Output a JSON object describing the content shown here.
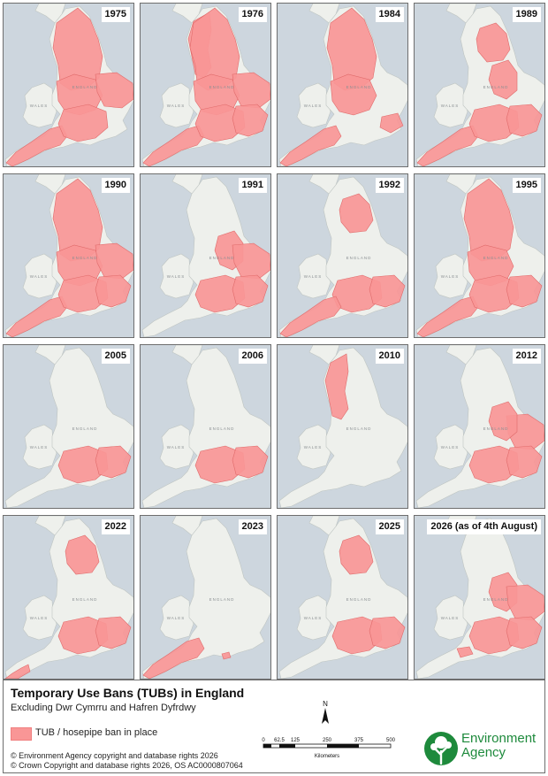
{
  "panels": [
    {
      "year": "1975",
      "regions": [
        "north",
        "midlands",
        "anglia",
        "southwest",
        "south"
      ]
    },
    {
      "year": "1976",
      "regions": [
        "northwest",
        "north",
        "midlands",
        "anglia",
        "southwest",
        "south",
        "southeast"
      ]
    },
    {
      "year": "1984",
      "regions": [
        "north",
        "midlands",
        "southwest",
        "kent"
      ]
    },
    {
      "year": "1989",
      "regions": [
        "yorkshire",
        "eastmid",
        "southwest",
        "south",
        "southeast"
      ]
    },
    {
      "year": "1990",
      "regions": [
        "north",
        "midlands",
        "anglia",
        "southwest",
        "south",
        "southeast"
      ]
    },
    {
      "year": "1991",
      "regions": [
        "eastmid",
        "anglia",
        "south",
        "southeast"
      ]
    },
    {
      "year": "1992",
      "regions": [
        "yorkshire",
        "south",
        "southeast",
        "southwest"
      ]
    },
    {
      "year": "1995",
      "regions": [
        "north",
        "midlands",
        "southwest",
        "south",
        "southeast"
      ]
    },
    {
      "year": "2005",
      "regions": [
        "south",
        "southeast"
      ]
    },
    {
      "year": "2006",
      "regions": [
        "south",
        "southeast"
      ]
    },
    {
      "year": "2010",
      "regions": [
        "northwest"
      ]
    },
    {
      "year": "2012",
      "regions": [
        "anglia",
        "eastmid",
        "south",
        "southeast"
      ]
    },
    {
      "year": "2022",
      "regions": [
        "yorkshire",
        "south",
        "southeast",
        "cornwall"
      ]
    },
    {
      "year": "2023",
      "regions": [
        "southwest",
        "isleofwight"
      ]
    },
    {
      "year": "2025",
      "regions": [
        "yorkshire",
        "south",
        "southeast"
      ]
    },
    {
      "year": "2026 (as of 4th August)",
      "regions": [
        "eastmid",
        "anglia",
        "south",
        "southeast",
        "dorset"
      ]
    }
  ],
  "map_labels": {
    "wales": "WALES",
    "england": "ENGLAND"
  },
  "legend": {
    "title": "Temporary Use Bans (TUBs) in England",
    "subtitle": "Excluding Dwr Cymrru and Hafren Dyfrdwy",
    "item_label": "TUB / hosepipe ban in place",
    "swatch_color": "#f99696"
  },
  "copyright": [
    "© Environment Agency copyright and database rights 2026",
    "© Crown Copyright and database rights 2026, OS AC0000807064"
  ],
  "north_label": "N",
  "scale": {
    "ticks": [
      "0",
      "62.5",
      "125",
      "250",
      "375",
      "500"
    ],
    "unit": "Kilometers"
  },
  "logo": {
    "line1": "Environment",
    "line2": "Agency",
    "color": "#1e8a3c"
  }
}
